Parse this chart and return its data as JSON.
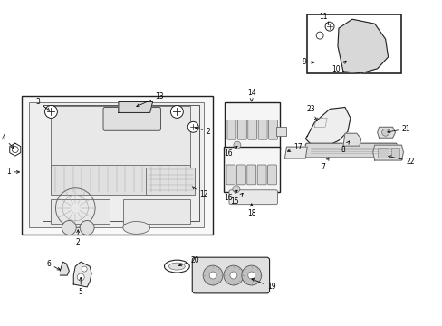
{
  "bg_color": "#ffffff",
  "fig_width": 4.89,
  "fig_height": 3.6,
  "dpi": 100,
  "line_color": "#222222",
  "label_color": "#000000",
  "fill_light": "#f0f0f0",
  "fill_med": "#e0e0e0",
  "fill_dark": "#cccccc",
  "lw_main": 0.8,
  "lw_thin": 0.5,
  "fs": 5.5
}
